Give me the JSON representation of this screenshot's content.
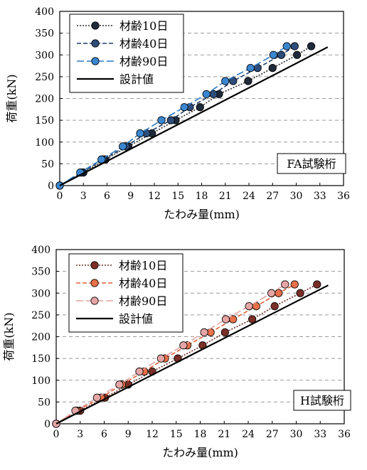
{
  "chart_data": [
    {
      "type": "scatter",
      "specimen_label": "FA試験桁",
      "xlabel": "たわみ量(mm)",
      "ylabel": "荷重(kN)",
      "xlim": [
        0,
        36
      ],
      "ylim": [
        0,
        400
      ],
      "xticks": [
        0,
        3,
        6,
        9,
        12,
        15,
        18,
        21,
        24,
        27,
        30,
        33,
        36
      ],
      "yticks": [
        0,
        50,
        100,
        150,
        200,
        250,
        300,
        350,
        400
      ],
      "grid": "horizontal dashed",
      "legend_position": "top-left",
      "series": [
        {
          "name": "材齢10日",
          "line_style": "dotted",
          "line_color": "#2b2b2b",
          "marker_color": "#1f2a3a",
          "points": [
            [
              0,
              0
            ],
            [
              3.0,
              30
            ],
            [
              5.8,
              60
            ],
            [
              8.7,
              90
            ],
            [
              11.7,
              120
            ],
            [
              14.7,
              150
            ],
            [
              17.8,
              180
            ],
            [
              20.2,
              210
            ],
            [
              23.9,
              240
            ],
            [
              27.0,
              270
            ],
            [
              30.1,
              300
            ],
            [
              31.9,
              320
            ]
          ]
        },
        {
          "name": "材齢40日",
          "line_style": "dashed",
          "line_color": "#1f3d6b",
          "marker_color": "#2e4d7a",
          "points": [
            [
              0,
              0
            ],
            [
              2.8,
              30
            ],
            [
              5.5,
              60
            ],
            [
              8.4,
              90
            ],
            [
              11.0,
              120
            ],
            [
              14.1,
              150
            ],
            [
              16.5,
              180
            ],
            [
              19.5,
              210
            ],
            [
              22.0,
              240
            ],
            [
              25.1,
              270
            ],
            [
              28.1,
              300
            ],
            [
              29.8,
              320
            ]
          ]
        },
        {
          "name": "材齢90日",
          "line_style": "long-dashed",
          "line_color": "#2e7bc4",
          "marker_color": "#3a86d0",
          "points": [
            [
              0,
              0
            ],
            [
              2.6,
              30
            ],
            [
              5.3,
              60
            ],
            [
              8.0,
              90
            ],
            [
              10.2,
              120
            ],
            [
              12.9,
              150
            ],
            [
              15.8,
              180
            ],
            [
              18.6,
              210
            ],
            [
              21.0,
              240
            ],
            [
              24.2,
              270
            ],
            [
              27.1,
              300
            ],
            [
              28.8,
              320
            ]
          ]
        },
        {
          "name": "設計値",
          "line_style": "solid",
          "line_color": "#000000",
          "points": [
            [
              0,
              0
            ],
            [
              34.0,
              318
            ]
          ]
        }
      ]
    },
    {
      "type": "scatter",
      "specimen_label": "H試験桁",
      "xlabel": "たわみ量(mm)",
      "ylabel": "荷重(kN)",
      "xlim": [
        0,
        36
      ],
      "ylim": [
        0,
        400
      ],
      "xticks": [
        0,
        3,
        6,
        9,
        12,
        15,
        18,
        21,
        24,
        27,
        30,
        33,
        36
      ],
      "yticks": [
        0,
        50,
        100,
        150,
        200,
        250,
        300,
        350,
        400
      ],
      "grid": "horizontal dashed",
      "legend_position": "top-left",
      "series": [
        {
          "name": "材齢10日",
          "line_style": "dotted",
          "line_color": "#6b2a24",
          "marker_color": "#7a2f27",
          "points": [
            [
              0,
              0
            ],
            [
              3.0,
              30
            ],
            [
              6.1,
              60
            ],
            [
              9.0,
              90
            ],
            [
              12.0,
              120
            ],
            [
              15.2,
              150
            ],
            [
              18.3,
              180
            ],
            [
              21.1,
              210
            ],
            [
              24.5,
              240
            ],
            [
              27.3,
              270
            ],
            [
              30.5,
              300
            ],
            [
              32.6,
              320
            ]
          ]
        },
        {
          "name": "材齢40日",
          "line_style": "dashed",
          "line_color": "#e0603a",
          "marker_color": "#e8704a",
          "points": [
            [
              0,
              0
            ],
            [
              2.6,
              30
            ],
            [
              5.6,
              60
            ],
            [
              8.2,
              90
            ],
            [
              11.0,
              120
            ],
            [
              13.6,
              150
            ],
            [
              16.4,
              180
            ],
            [
              19.3,
              210
            ],
            [
              22.1,
              240
            ],
            [
              25.0,
              270
            ],
            [
              27.8,
              300
            ],
            [
              29.8,
              320
            ]
          ]
        },
        {
          "name": "材齢90日",
          "line_style": "long-dashed",
          "line_color": "#e3a3a3",
          "marker_color": "#e6a5a5",
          "points": [
            [
              0,
              0
            ],
            [
              2.4,
              30
            ],
            [
              5.1,
              60
            ],
            [
              7.9,
              90
            ],
            [
              10.4,
              120
            ],
            [
              13.1,
              150
            ],
            [
              15.9,
              180
            ],
            [
              18.5,
              210
            ],
            [
              21.2,
              240
            ],
            [
              24.1,
              270
            ],
            [
              26.9,
              300
            ],
            [
              28.6,
              320
            ]
          ]
        },
        {
          "name": "設計値",
          "line_style": "solid",
          "line_color": "#000000",
          "points": [
            [
              0,
              0
            ],
            [
              34.0,
              318
            ]
          ]
        }
      ]
    }
  ]
}
